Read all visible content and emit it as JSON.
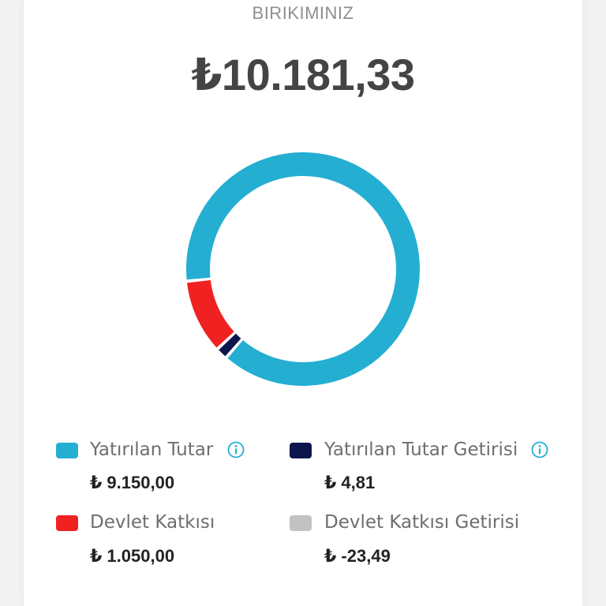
{
  "header": {
    "label": "BIRIKIMINIZ",
    "total": "₺10.181,33"
  },
  "chart_data": {
    "type": "pie",
    "title": "",
    "series": [
      {
        "name": "Yatırılan Tutar",
        "value": 9150.0,
        "color": "#24aed2"
      },
      {
        "name": "Devlet Katkısı",
        "value": 1050.0,
        "color": "#f02121"
      },
      {
        "name": "Yatırılan Tutar Getirisi",
        "value": 4.81,
        "color": "#0c154c"
      },
      {
        "name": "Devlet Katkısı Getirisi",
        "value": -23.49,
        "color": "#c2c2c2"
      }
    ],
    "donut": true
  },
  "legend": [
    {
      "label": "Yatırılan Tutar",
      "value": "₺ 9.150,00",
      "color": "#24aed2",
      "icon": "info-icon",
      "has_info": true
    },
    {
      "label": "Yatırılan Tutar Getirisi",
      "value": "₺ 4,81",
      "color": "#0c154c",
      "icon": "info-icon",
      "has_info": true
    },
    {
      "label": "Devlet Katkısı",
      "value": "₺ 1.050,00",
      "color": "#f02121",
      "has_info": false
    },
    {
      "label": "Devlet Katkısı Getirisi",
      "value": "₺ -23,49",
      "color": "#c2c2c2",
      "has_info": false
    }
  ],
  "colors": {
    "accent": "#24aed2",
    "info": "#24aed2"
  }
}
